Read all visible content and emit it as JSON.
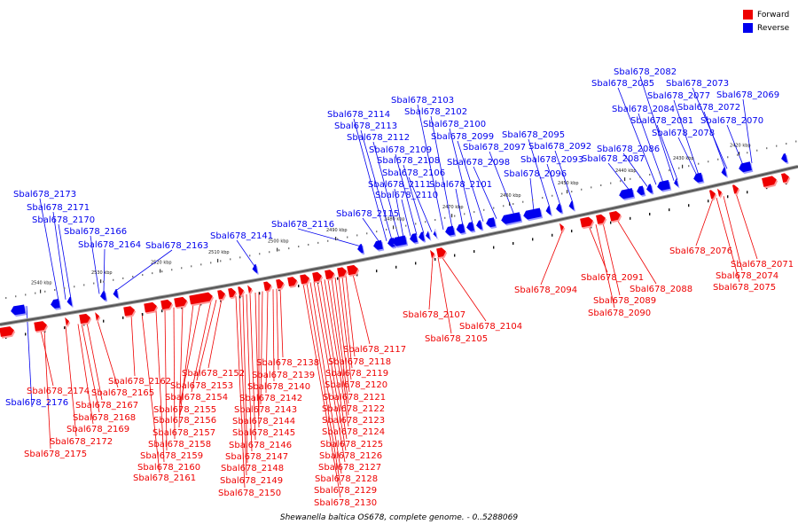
{
  "legend": {
    "forward_label": "Forward",
    "reverse_label": "Reverse",
    "forward_color": "#ee0000",
    "reverse_color": "#0000ee"
  },
  "caption": "Shewanella baltica OS678, complete genome. - 0..5288069",
  "ticks": [
    "2540 kbp",
    "2530 kbp",
    "2520 kbp",
    "2510 kbp",
    "2500 kbp",
    "2490 kbp",
    "2480 kbp",
    "2470 kbp",
    "2460 kbp",
    "2450 kbp",
    "2440 kbp",
    "2430 kbp",
    "2420 kbp"
  ],
  "reverse_genes": [
    "Sbal678_2069",
    "Sbal678_2070",
    "Sbal678_2072",
    "Sbal678_2073",
    "Sbal678_2077",
    "Sbal678_2078",
    "Sbal678_2081",
    "Sbal678_2082",
    "Sbal678_2084",
    "Sbal678_2085",
    "Sbal678_2086",
    "Sbal678_2087",
    "Sbal678_2092",
    "Sbal678_2093",
    "Sbal678_2095",
    "Sbal678_2096",
    "Sbal678_2097",
    "Sbal678_2098",
    "Sbal678_2099",
    "Sbal678_2100",
    "Sbal678_2101",
    "Sbal678_2102",
    "Sbal678_2103",
    "Sbal678_2106",
    "Sbal678_2108",
    "Sbal678_2109",
    "Sbal678_2110",
    "Sbal678_2111",
    "Sbal678_2112",
    "Sbal678_2113",
    "Sbal678_2114",
    "Sbal678_2115",
    "Sbal678_2116",
    "Sbal678_2141",
    "Sbal678_2163",
    "Sbal678_2164",
    "Sbal678_2166",
    "Sbal678_2170",
    "Sbal678_2171",
    "Sbal678_2173",
    "Sbal678_2176"
  ],
  "forward_genes": [
    "Sbal678_2071",
    "Sbal678_2074",
    "Sbal678_2075",
    "Sbal678_2076",
    "Sbal678_2088",
    "Sbal678_2089",
    "Sbal678_2090",
    "Sbal678_2091",
    "Sbal678_2094",
    "Sbal678_2104",
    "Sbal678_2105",
    "Sbal678_2107",
    "Sbal678_2117",
    "Sbal678_2118",
    "Sbal678_2119",
    "Sbal678_2120",
    "Sbal678_2121",
    "Sbal678_2122",
    "Sbal678_2123",
    "Sbal678_2124",
    "Sbal678_2125",
    "Sbal678_2126",
    "Sbal678_2127",
    "Sbal678_2128",
    "Sbal678_2129",
    "Sbal678_2130",
    "Sbal678_2138",
    "Sbal678_2139",
    "Sbal678_2140",
    "Sbal678_2142",
    "Sbal678_2143",
    "Sbal678_2144",
    "Sbal678_2145",
    "Sbal678_2146",
    "Sbal678_2147",
    "Sbal678_2148",
    "Sbal678_2149",
    "Sbal678_2150",
    "Sbal678_2152",
    "Sbal678_2153",
    "Sbal678_2154",
    "Sbal678_2155",
    "Sbal678_2156",
    "Sbal678_2157",
    "Sbal678_2158",
    "Sbal678_2159",
    "Sbal678_2160",
    "Sbal678_2161",
    "Sbal678_2162",
    "Sbal678_2165",
    "Sbal678_2167",
    "Sbal678_2168",
    "Sbal678_2169",
    "Sbal678_2172",
    "Sbal678_2174",
    "Sbal678_2175"
  ]
}
